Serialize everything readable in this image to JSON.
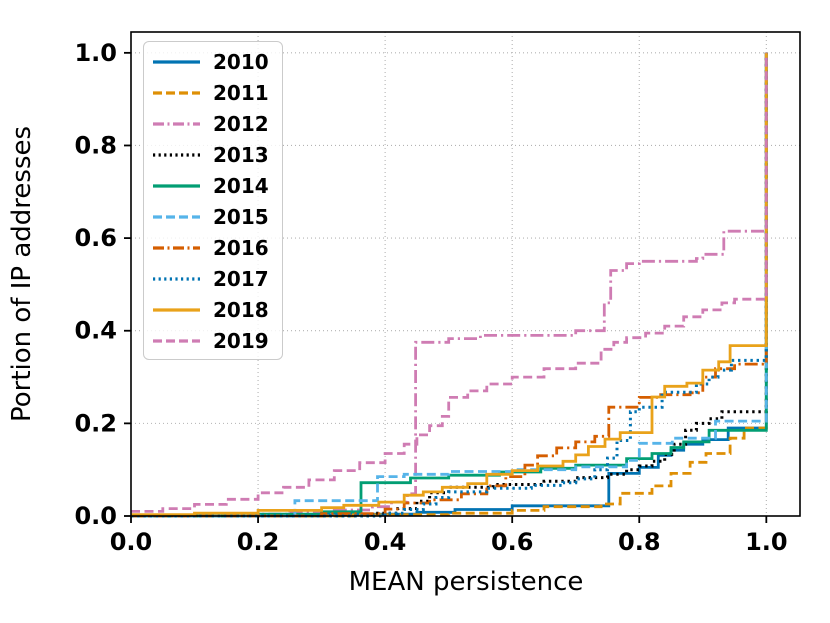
{
  "chart_data": {
    "type": "line",
    "subtype": "step-cdf",
    "title": "",
    "xlabel": "MEAN persistence",
    "ylabel": "Portion of IP addresses",
    "xlim": [
      0,
      1.053
    ],
    "ylim": [
      0,
      1.045
    ],
    "grid": true,
    "grid_color": "#b3b3b3",
    "legend_position": "upper-left",
    "xticks": {
      "values": [
        0,
        0.2,
        0.4,
        0.6,
        0.8,
        1.0
      ],
      "labels": [
        "0.0",
        "0.2",
        "0.4",
        "0.6",
        "0.8",
        "1.0"
      ]
    },
    "yticks": {
      "values": [
        0,
        0.2,
        0.4,
        0.6,
        0.8,
        1.0
      ],
      "labels": [
        "0.0",
        "0.2",
        "0.4",
        "0.6",
        "0.8",
        "1.0"
      ]
    },
    "series": [
      {
        "name": "2010",
        "color": "#0173b2",
        "linestyle": "solid",
        "points": [
          [
            0,
            0
          ],
          [
            0.3,
            0.004
          ],
          [
            0.45,
            0.008
          ],
          [
            0.51,
            0.014
          ],
          [
            0.6,
            0.022
          ],
          [
            0.752,
            0.092
          ],
          [
            0.8,
            0.105
          ],
          [
            0.83,
            0.131
          ],
          [
            0.85,
            0.142
          ],
          [
            0.87,
            0.155
          ],
          [
            0.9,
            0.165
          ],
          [
            0.94,
            0.19
          ],
          [
            1.0,
            1.0
          ]
        ]
      },
      {
        "name": "2011",
        "color": "#de8f05",
        "linestyle": "dashed",
        "points": [
          [
            0,
            0
          ],
          [
            0.35,
            0.003
          ],
          [
            0.5,
            0.006
          ],
          [
            0.6,
            0.012
          ],
          [
            0.65,
            0.02
          ],
          [
            0.74,
            0.026
          ],
          [
            0.77,
            0.049
          ],
          [
            0.82,
            0.065
          ],
          [
            0.85,
            0.092
          ],
          [
            0.88,
            0.116
          ],
          [
            0.905,
            0.135
          ],
          [
            0.943,
            0.168
          ],
          [
            0.965,
            0.19
          ],
          [
            1.0,
            1.0
          ]
        ]
      },
      {
        "name": "2012",
        "color": "#cf7cb3",
        "linestyle": "dashdot",
        "points": [
          [
            0,
            0
          ],
          [
            0.1,
            0.004
          ],
          [
            0.25,
            0.008
          ],
          [
            0.32,
            0.013
          ],
          [
            0.38,
            0.02
          ],
          [
            0.41,
            0.03
          ],
          [
            0.435,
            0.048
          ],
          [
            0.448,
            0.375
          ],
          [
            0.5,
            0.383
          ],
          [
            0.55,
            0.39
          ],
          [
            0.7,
            0.4
          ],
          [
            0.745,
            0.46
          ],
          [
            0.755,
            0.53
          ],
          [
            0.78,
            0.545
          ],
          [
            0.8,
            0.55
          ],
          [
            0.89,
            0.556
          ],
          [
            0.9,
            0.565
          ],
          [
            0.933,
            0.615
          ],
          [
            1.0,
            1.0
          ]
        ]
      },
      {
        "name": "2013",
        "color": "#000000",
        "linestyle": "dotted",
        "points": [
          [
            0,
            0
          ],
          [
            0.38,
            0.006
          ],
          [
            0.42,
            0.016
          ],
          [
            0.45,
            0.032
          ],
          [
            0.47,
            0.05
          ],
          [
            0.5,
            0.062
          ],
          [
            0.57,
            0.068
          ],
          [
            0.65,
            0.075
          ],
          [
            0.7,
            0.083
          ],
          [
            0.75,
            0.09
          ],
          [
            0.78,
            0.1
          ],
          [
            0.8,
            0.108
          ],
          [
            0.82,
            0.118
          ],
          [
            0.84,
            0.133
          ],
          [
            0.855,
            0.155
          ],
          [
            0.873,
            0.185
          ],
          [
            0.89,
            0.2
          ],
          [
            0.91,
            0.21
          ],
          [
            0.93,
            0.225
          ],
          [
            1.0,
            1.0
          ]
        ]
      },
      {
        "name": "2014",
        "color": "#029e73",
        "linestyle": "solid",
        "points": [
          [
            0,
            0
          ],
          [
            0.2,
            0.004
          ],
          [
            0.3,
            0.009
          ],
          [
            0.362,
            0.072
          ],
          [
            0.44,
            0.082
          ],
          [
            0.5,
            0.088
          ],
          [
            0.58,
            0.095
          ],
          [
            0.645,
            0.103
          ],
          [
            0.7,
            0.11
          ],
          [
            0.78,
            0.124
          ],
          [
            0.82,
            0.135
          ],
          [
            0.85,
            0.148
          ],
          [
            0.87,
            0.16
          ],
          [
            0.91,
            0.185
          ],
          [
            1.0,
            1.0
          ]
        ]
      },
      {
        "name": "2015",
        "color": "#56b4e9",
        "linestyle": "dashed",
        "points": [
          [
            0,
            0
          ],
          [
            0.258,
            0.033
          ],
          [
            0.388,
            0.085
          ],
          [
            0.43,
            0.09
          ],
          [
            0.5,
            0.096
          ],
          [
            0.6,
            0.1
          ],
          [
            0.7,
            0.106
          ],
          [
            0.78,
            0.12
          ],
          [
            0.8,
            0.157
          ],
          [
            0.852,
            0.168
          ],
          [
            0.92,
            0.205
          ],
          [
            1.0,
            1.0
          ]
        ]
      },
      {
        "name": "2016",
        "color": "#d55e00",
        "linestyle": "dashdot",
        "points": [
          [
            0,
            0
          ],
          [
            0.3,
            0.005
          ],
          [
            0.4,
            0.015
          ],
          [
            0.43,
            0.028
          ],
          [
            0.47,
            0.035
          ],
          [
            0.52,
            0.048
          ],
          [
            0.56,
            0.065
          ],
          [
            0.59,
            0.085
          ],
          [
            0.62,
            0.11
          ],
          [
            0.64,
            0.13
          ],
          [
            0.67,
            0.147
          ],
          [
            0.7,
            0.16
          ],
          [
            0.73,
            0.172
          ],
          [
            0.752,
            0.235
          ],
          [
            0.8,
            0.256
          ],
          [
            0.83,
            0.262
          ],
          [
            0.88,
            0.266
          ],
          [
            0.9,
            0.3
          ],
          [
            0.92,
            0.318
          ],
          [
            0.95,
            0.328
          ],
          [
            1.0,
            1.0
          ]
        ]
      },
      {
        "name": "2017",
        "color": "#0173b2",
        "linestyle": "dotted",
        "points": [
          [
            0,
            0
          ],
          [
            0.4,
            0.006
          ],
          [
            0.43,
            0.014
          ],
          [
            0.46,
            0.026
          ],
          [
            0.48,
            0.04
          ],
          [
            0.5,
            0.052
          ],
          [
            0.56,
            0.06
          ],
          [
            0.63,
            0.066
          ],
          [
            0.68,
            0.072
          ],
          [
            0.7,
            0.08
          ],
          [
            0.73,
            0.1
          ],
          [
            0.75,
            0.125
          ],
          [
            0.765,
            0.163
          ],
          [
            0.786,
            0.225
          ],
          [
            0.8,
            0.235
          ],
          [
            0.836,
            0.267
          ],
          [
            0.89,
            0.285
          ],
          [
            0.91,
            0.3
          ],
          [
            0.924,
            0.315
          ],
          [
            0.945,
            0.336
          ],
          [
            1.0,
            1.0
          ]
        ]
      },
      {
        "name": "2018",
        "color": "#e9a21a",
        "linestyle": "solid",
        "points": [
          [
            0,
            0.003
          ],
          [
            0.1,
            0.006
          ],
          [
            0.2,
            0.012
          ],
          [
            0.3,
            0.018
          ],
          [
            0.335,
            0.023
          ],
          [
            0.39,
            0.03
          ],
          [
            0.43,
            0.045
          ],
          [
            0.46,
            0.052
          ],
          [
            0.49,
            0.062
          ],
          [
            0.53,
            0.07
          ],
          [
            0.56,
            0.09
          ],
          [
            0.6,
            0.098
          ],
          [
            0.64,
            0.108
          ],
          [
            0.68,
            0.118
          ],
          [
            0.7,
            0.132
          ],
          [
            0.72,
            0.15
          ],
          [
            0.746,
            0.166
          ],
          [
            0.77,
            0.18
          ],
          [
            0.82,
            0.257
          ],
          [
            0.84,
            0.28
          ],
          [
            0.875,
            0.287
          ],
          [
            0.9,
            0.315
          ],
          [
            0.925,
            0.333
          ],
          [
            0.943,
            0.368
          ],
          [
            1.0,
            1.0
          ]
        ]
      },
      {
        "name": "2019",
        "color": "#cf7cb3",
        "linestyle": "dashed",
        "points": [
          [
            0,
            0.01
          ],
          [
            0.05,
            0.016
          ],
          [
            0.1,
            0.025
          ],
          [
            0.15,
            0.036
          ],
          [
            0.2,
            0.05
          ],
          [
            0.24,
            0.062
          ],
          [
            0.28,
            0.078
          ],
          [
            0.32,
            0.098
          ],
          [
            0.36,
            0.115
          ],
          [
            0.4,
            0.135
          ],
          [
            0.43,
            0.155
          ],
          [
            0.45,
            0.175
          ],
          [
            0.47,
            0.195
          ],
          [
            0.49,
            0.215
          ],
          [
            0.5,
            0.256
          ],
          [
            0.53,
            0.27
          ],
          [
            0.56,
            0.285
          ],
          [
            0.6,
            0.3
          ],
          [
            0.65,
            0.318
          ],
          [
            0.7,
            0.33
          ],
          [
            0.74,
            0.36
          ],
          [
            0.76,
            0.375
          ],
          [
            0.78,
            0.385
          ],
          [
            0.81,
            0.395
          ],
          [
            0.84,
            0.41
          ],
          [
            0.87,
            0.43
          ],
          [
            0.9,
            0.445
          ],
          [
            0.93,
            0.46
          ],
          [
            0.95,
            0.468
          ],
          [
            1.0,
            1.0
          ]
        ]
      }
    ]
  }
}
